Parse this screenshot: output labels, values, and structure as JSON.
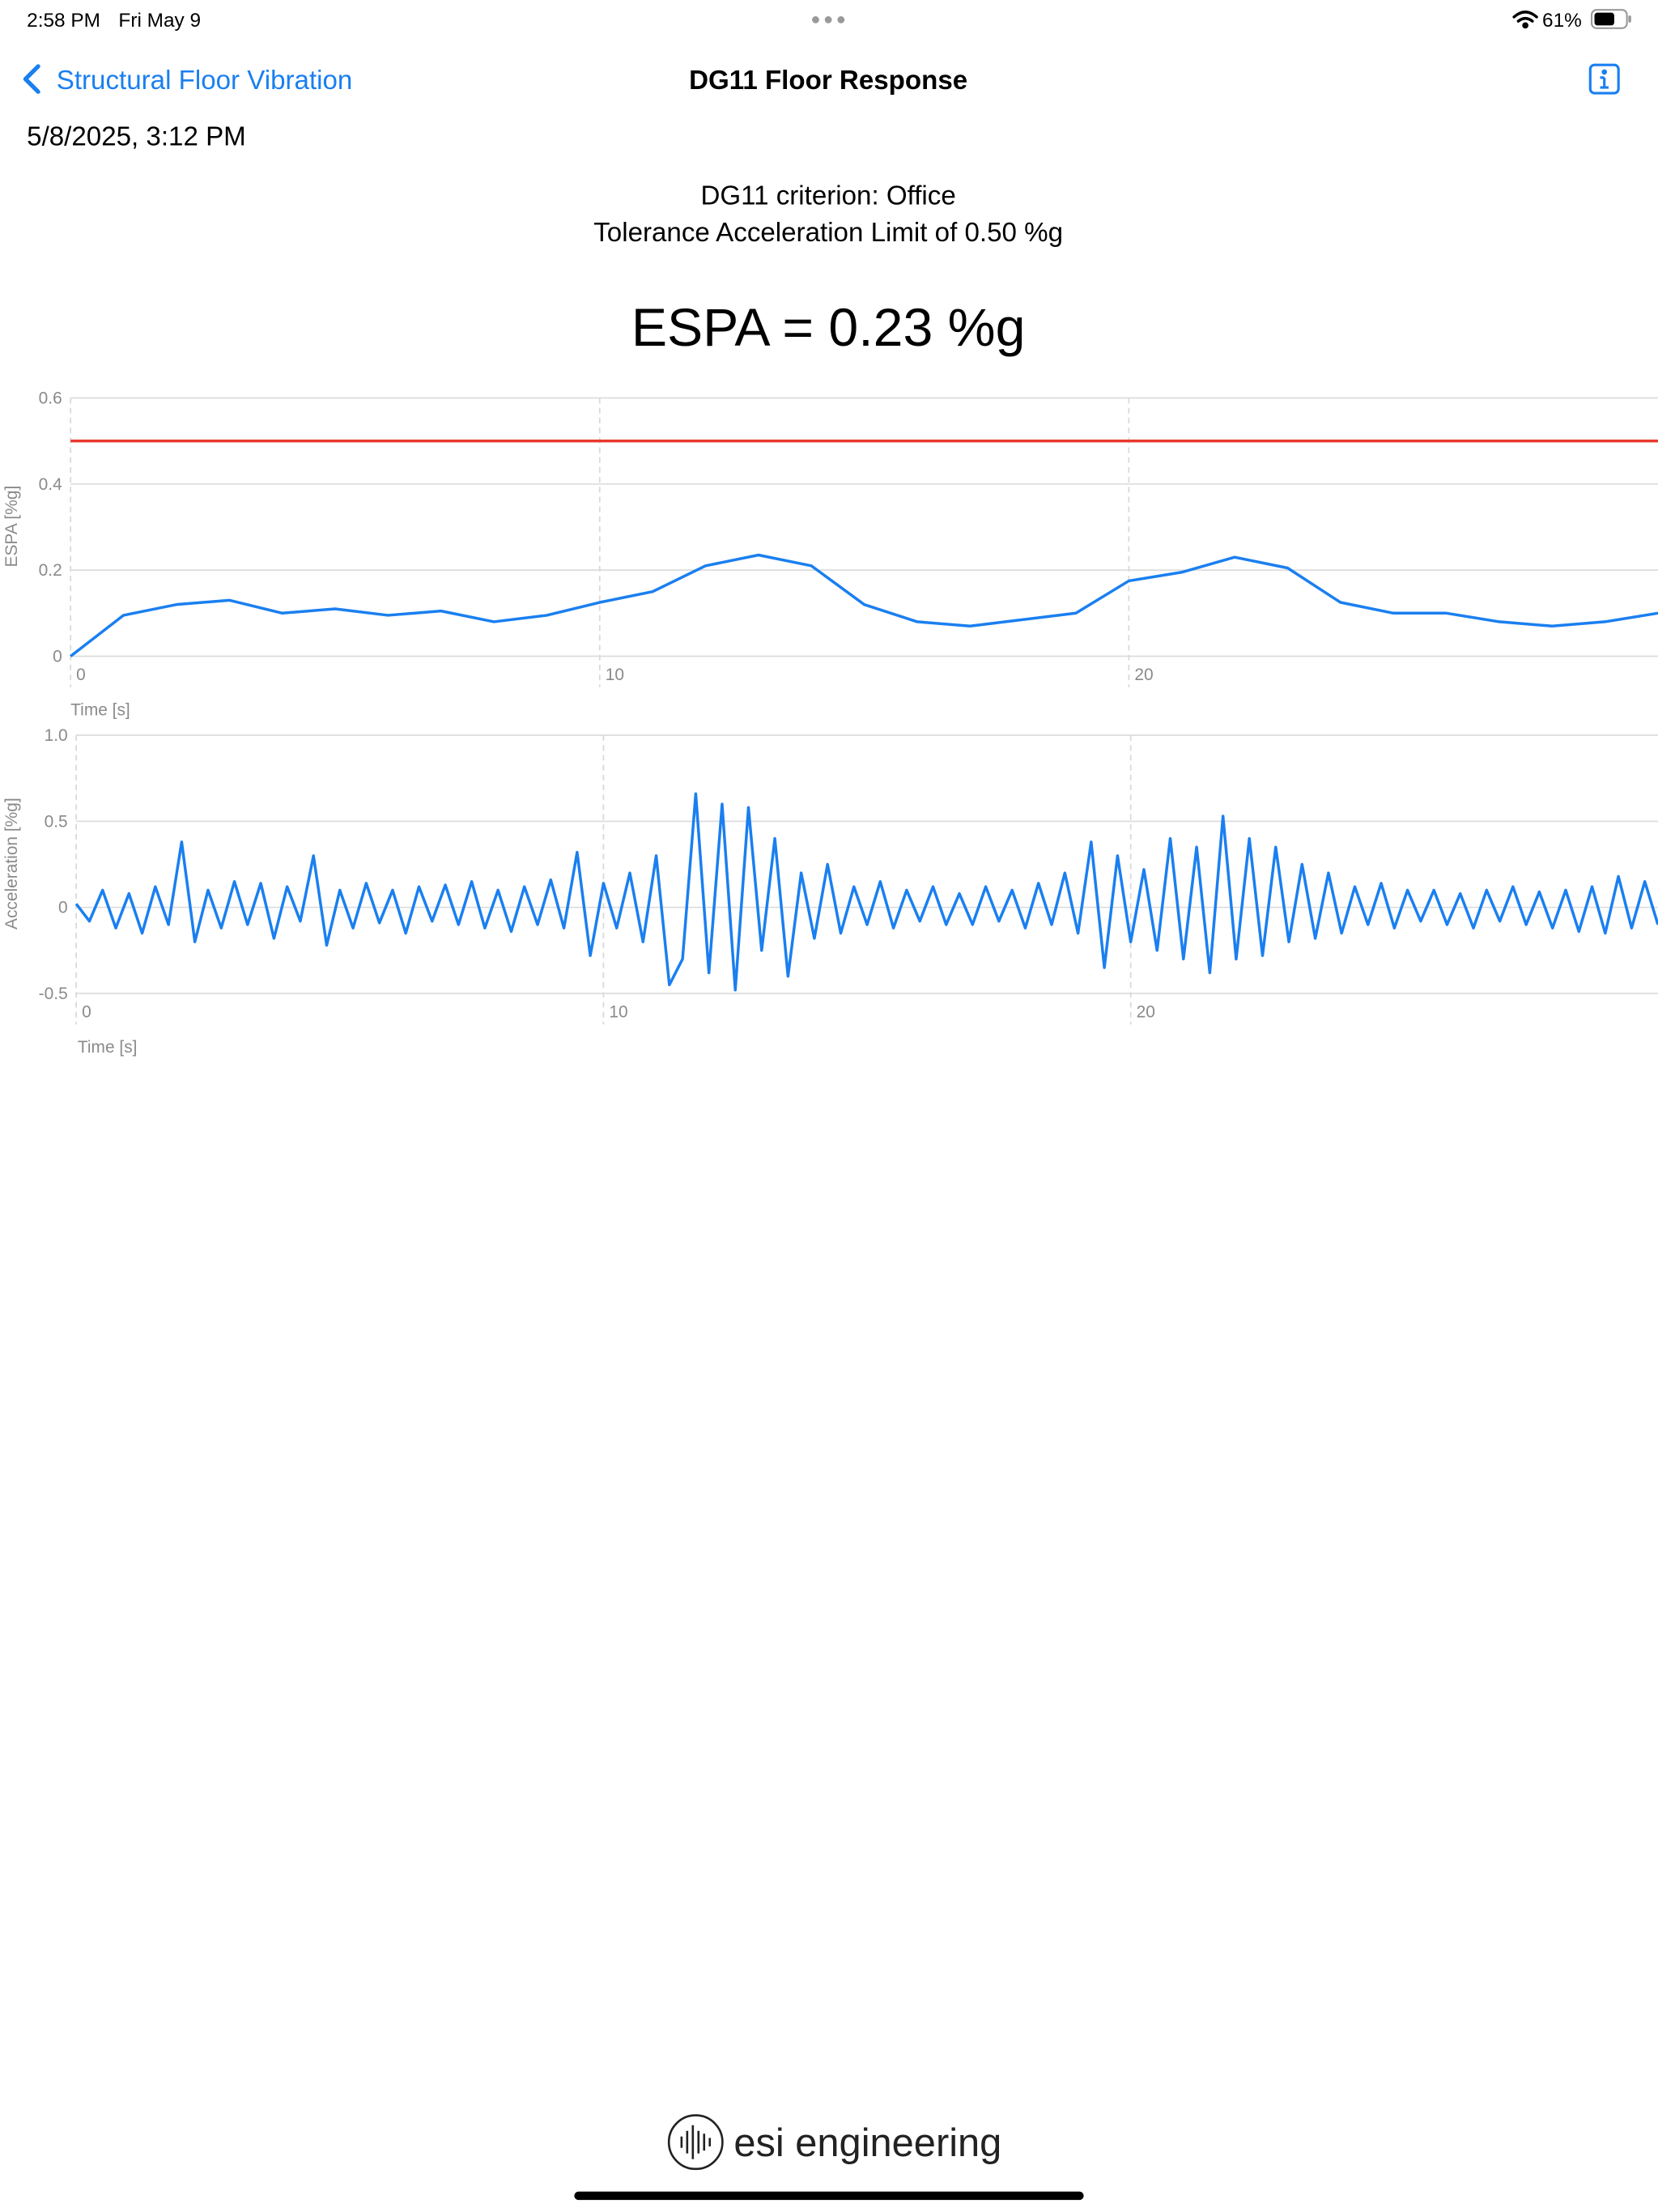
{
  "status_bar": {
    "time": "2:58 PM",
    "date": "Fri May 9",
    "battery": "61%"
  },
  "nav": {
    "back": "Structural Floor Vibration",
    "title": "DG11 Floor Response"
  },
  "header": {
    "timestamp": "5/8/2025, 3:12 PM",
    "criterion": "DG11 criterion:  Office",
    "limit": "Tolerance Acceleration Limit of 0.50 %g",
    "espa": "ESPA = 0.23 %g"
  },
  "chart_data": [
    {
      "type": "line",
      "ylabel": "ESPA [%g]",
      "xlabel": "Time [s]",
      "x": [
        0,
        1,
        2,
        3,
        4,
        5,
        6,
        7,
        8,
        9,
        10,
        11,
        12,
        13,
        14,
        15,
        16,
        17,
        18,
        19,
        20,
        21,
        22,
        23,
        24,
        25,
        26,
        27,
        28,
        29,
        30
      ],
      "series": [
        {
          "color": "#1a7ff0",
          "values": [
            0,
            0.095,
            0.12,
            0.13,
            0.1,
            0.11,
            0.095,
            0.105,
            0.08,
            0.095,
            0.125,
            0.15,
            0.21,
            0.235,
            0.21,
            0.12,
            0.08,
            0.07,
            0.085,
            0.1,
            0.175,
            0.195,
            0.23,
            0.205,
            0.125,
            0.1,
            0.1,
            0.08,
            0.07,
            0.08,
            0.1
          ]
        }
      ],
      "threshold": {
        "value": 0.5,
        "color": "#e8382f"
      },
      "xlim": [
        0,
        30
      ],
      "ylim": [
        0,
        0.6
      ],
      "xticks": [
        0,
        10,
        20
      ],
      "yticks": [
        0,
        0.2,
        0.4,
        0.6
      ],
      "grid": true
    },
    {
      "type": "line",
      "ylabel": "Acceleration [%g]",
      "xlabel": "Time [s]",
      "x": [
        0,
        0.25,
        0.5,
        0.75,
        1,
        1.25,
        1.5,
        1.75,
        2,
        2.25,
        2.5,
        2.75,
        3,
        3.25,
        3.5,
        3.75,
        4,
        4.25,
        4.5,
        4.75,
        5,
        5.25,
        5.5,
        5.75,
        6,
        6.25,
        6.5,
        6.75,
        7,
        7.25,
        7.5,
        7.75,
        8,
        8.25,
        8.5,
        8.75,
        9,
        9.25,
        9.5,
        9.75,
        10,
        10.25,
        10.5,
        10.75,
        11,
        11.25,
        11.5,
        11.75,
        12,
        12.25,
        12.5,
        12.75,
        13,
        13.25,
        13.5,
        13.75,
        14,
        14.25,
        14.5,
        14.75,
        15,
        15.25,
        15.5,
        15.75,
        16,
        16.25,
        16.5,
        16.75,
        17,
        17.25,
        17.5,
        17.75,
        18,
        18.25,
        18.5,
        18.75,
        19,
        19.25,
        19.5,
        19.75,
        20,
        20.25,
        20.5,
        20.75,
        21,
        21.25,
        21.5,
        21.75,
        22,
        22.25,
        22.5,
        22.75,
        23,
        23.25,
        23.5,
        23.75,
        24,
        24.25,
        24.5,
        24.75,
        25,
        25.25,
        25.5,
        25.75,
        26,
        26.25,
        26.5,
        26.75,
        27,
        27.25,
        27.5,
        27.75,
        28,
        28.25,
        28.5,
        28.75,
        29,
        29.25,
        29.5,
        29.75,
        30
      ],
      "series": [
        {
          "color": "#1a7ff0",
          "values": [
            0.02,
            -0.08,
            0.1,
            -0.12,
            0.08,
            -0.15,
            0.12,
            -0.1,
            0.38,
            -0.2,
            0.1,
            -0.12,
            0.15,
            -0.1,
            0.14,
            -0.18,
            0.12,
            -0.08,
            0.3,
            -0.22,
            0.1,
            -0.12,
            0.14,
            -0.09,
            0.1,
            -0.15,
            0.12,
            -0.08,
            0.13,
            -0.1,
            0.15,
            -0.12,
            0.1,
            -0.14,
            0.12,
            -0.1,
            0.16,
            -0.12,
            0.32,
            -0.28,
            0.14,
            -0.12,
            0.2,
            -0.2,
            0.3,
            -0.45,
            -0.3,
            0.66,
            -0.38,
            0.6,
            -0.48,
            0.58,
            -0.25,
            0.4,
            -0.4,
            0.2,
            -0.18,
            0.25,
            -0.15,
            0.12,
            -0.1,
            0.15,
            -0.12,
            0.1,
            -0.08,
            0.12,
            -0.1,
            0.08,
            -0.1,
            0.12,
            -0.08,
            0.1,
            -0.12,
            0.14,
            -0.1,
            0.2,
            -0.15,
            0.38,
            -0.35,
            0.3,
            -0.2,
            0.22,
            -0.25,
            0.4,
            -0.3,
            0.35,
            -0.38,
            0.53,
            -0.3,
            0.4,
            -0.28,
            0.35,
            -0.2,
            0.25,
            -0.18,
            0.2,
            -0.15,
            0.12,
            -0.1,
            0.14,
            -0.12,
            0.1,
            -0.08,
            0.1,
            -0.1,
            0.08,
            -0.12,
            0.1,
            -0.08,
            0.12,
            -0.1,
            0.09,
            -0.12,
            0.1,
            -0.14,
            0.12,
            -0.15,
            0.18,
            -0.12,
            0.15,
            -0.1
          ]
        }
      ],
      "xlim": [
        0,
        30
      ],
      "ylim": [
        -0.5,
        1
      ],
      "xticks": [
        0,
        10,
        20
      ],
      "yticks": [
        -0.5,
        0,
        0.5,
        {
          "value": 1,
          "label": "1.0"
        }
      ],
      "grid": true
    }
  ],
  "footer": {
    "logo": "esi engineering"
  }
}
